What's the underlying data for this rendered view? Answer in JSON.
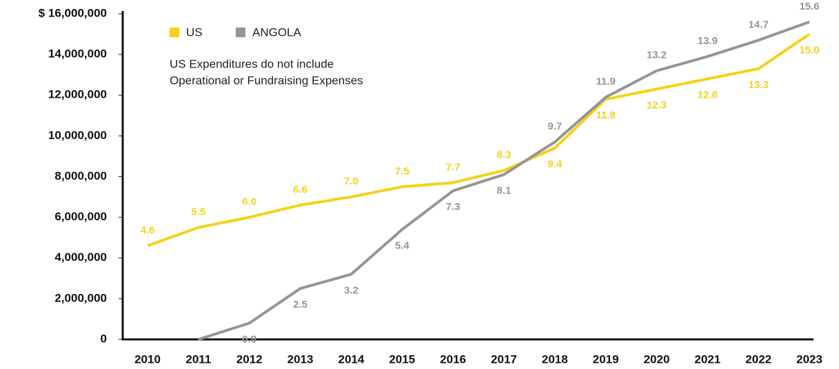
{
  "chart_data": {
    "type": "line",
    "categories": [
      "2010",
      "2011",
      "2012",
      "2013",
      "2014",
      "2015",
      "2016",
      "2017",
      "2018",
      "2019",
      "2020",
      "2021",
      "2022",
      "2023"
    ],
    "series": [
      {
        "name": "US",
        "color": "#f7d117",
        "values": [
          4600000,
          5500000,
          6000000,
          6600000,
          7000000,
          7500000,
          7700000,
          8300000,
          9400000,
          11800000,
          12300000,
          12800000,
          13300000,
          15000000
        ],
        "value_labels": [
          "4.6",
          "5.5",
          "6.0",
          "6.6",
          "7.0",
          "7.5",
          "7.7",
          "8.3",
          "9.4",
          "11.8",
          "12.3",
          "12.8",
          "13.3",
          "15.0"
        ]
      },
      {
        "name": "ANGOLA",
        "color": "#959595",
        "values": [
          null,
          0,
          800000,
          2500000,
          3200000,
          5400000,
          7300000,
          8100000,
          9700000,
          11900000,
          13200000,
          13900000,
          14700000,
          15600000
        ],
        "value_labels": [
          null,
          null,
          "0.8",
          "2.5",
          "3.2",
          "5.4",
          "7.3",
          "8.1",
          "9.7",
          "11.9",
          "13.2",
          "13.9",
          "14.7",
          "15.6"
        ]
      }
    ],
    "annotations": [
      "US Expenditures do not include",
      "Operational or Fundraising Expenses"
    ],
    "ylim": [
      0,
      16000000
    ],
    "yticks": [
      0,
      {
        "value": 2000000,
        "label": "2,000,000"
      },
      {
        "value": 4000000,
        "label": "4,000,000"
      },
      {
        "value": 6000000,
        "label": "6,000,000"
      },
      {
        "value": 8000000,
        "label": "8,000,000"
      },
      {
        "value": 10000000,
        "label": "10,000,000"
      },
      {
        "value": 12000000,
        "label": "12,000,000"
      },
      {
        "value": 14000000,
        "label": "14,000,000"
      },
      {
        "value": 16000000,
        "label": "$ 16,000,000"
      }
    ],
    "grid": false
  }
}
